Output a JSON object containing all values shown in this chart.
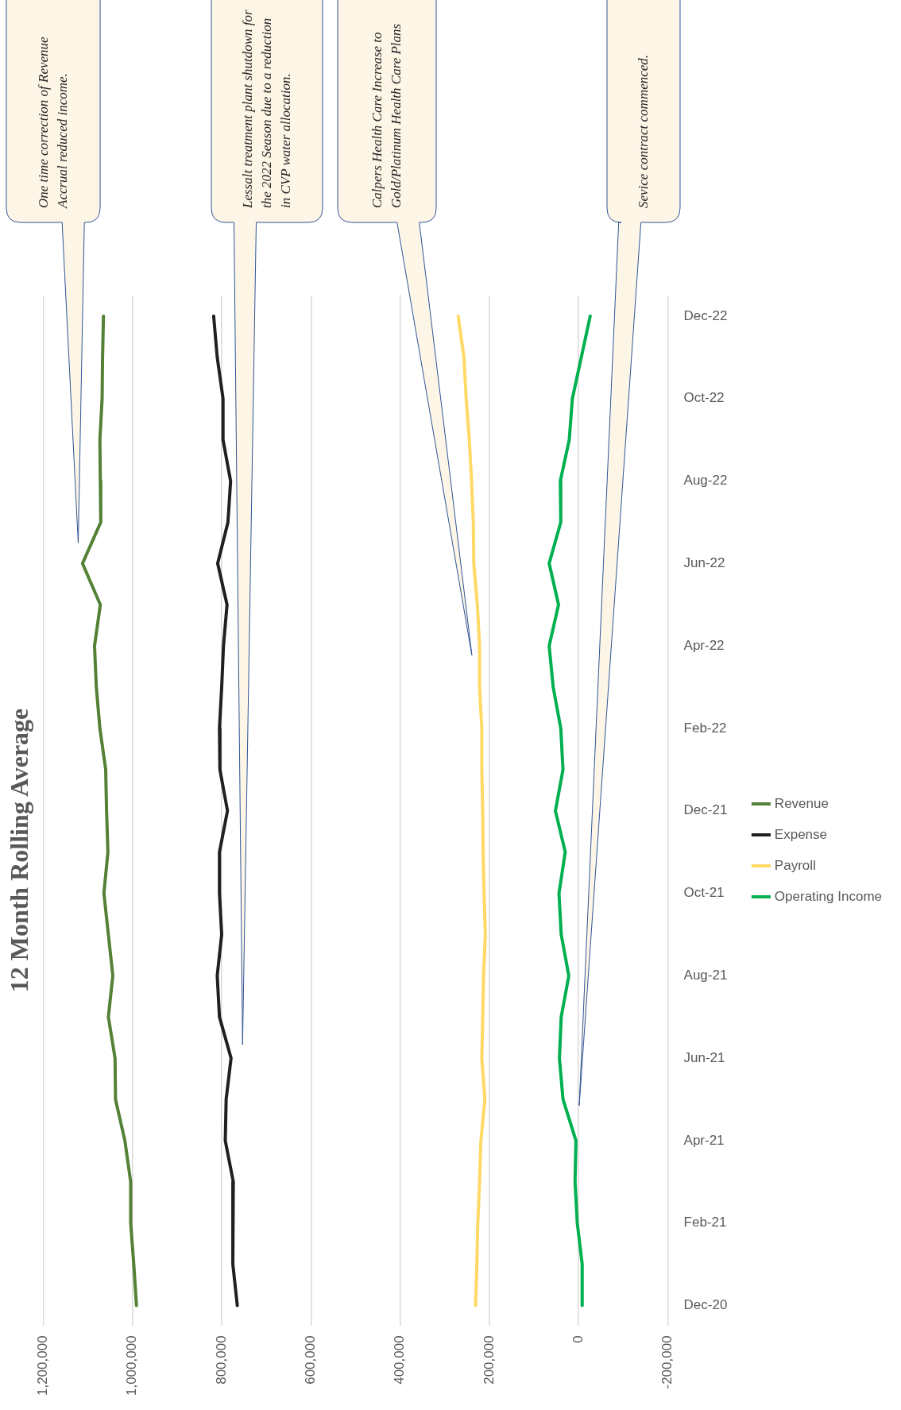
{
  "chart_data": {
    "type": "line",
    "title": "12 Month Rolling Average",
    "orientation": "horizontal",
    "categories": [
      "Dec-22",
      null,
      "Oct-22",
      null,
      "Aug-22",
      null,
      "Jun-22",
      null,
      "Apr-22",
      null,
      "Feb-22",
      null,
      "Dec-21",
      null,
      "Oct-21",
      null,
      "Aug-21",
      null,
      "Jun-21",
      null,
      "Apr-21",
      null,
      "Feb-21",
      null,
      "Dec-20"
    ],
    "series": [
      {
        "name": "Revenue",
        "color": "#538135",
        "values": [
          1065000,
          1067000,
          1068000,
          1073000,
          1072000,
          1071000,
          1112000,
          1072000,
          1085000,
          1081000,
          1073000,
          1060000,
          1058000,
          1055000,
          1064000,
          1054000,
          1044000,
          1054000,
          1039000,
          1038000,
          1017000,
          1004000,
          1004000,
          997000,
          991000
        ]
      },
      {
        "name": "Expense",
        "color": "#231f20",
        "values": [
          818000,
          810000,
          797000,
          797000,
          780000,
          786000,
          809000,
          788000,
          796000,
          800000,
          805000,
          804000,
          787000,
          805000,
          805000,
          800000,
          810000,
          805000,
          779000,
          790000,
          792000,
          774000,
          775000,
          775000,
          765000
        ]
      },
      {
        "name": "Payroll",
        "color": "#ffd966",
        "values": [
          270000,
          257000,
          252000,
          245000,
          240000,
          236000,
          235000,
          227000,
          222000,
          222000,
          217000,
          217000,
          215000,
          214000,
          212000,
          209000,
          213000,
          215000,
          217000,
          210000,
          219000,
          222000,
          226000,
          228000,
          231000
        ]
      },
      {
        "name": "Operating Income",
        "color": "#00b050",
        "values": [
          -26000,
          -6000,
          14000,
          21000,
          41000,
          40000,
          66000,
          45000,
          66000,
          57000,
          40000,
          35000,
          52000,
          30000,
          44000,
          39000,
          22000,
          39000,
          43000,
          35000,
          6000,
          8000,
          3000,
          -8000,
          -8000
        ]
      }
    ],
    "xlim": [
      1200000,
      -200000
    ],
    "xticks": [
      {
        "value": 1200000,
        "label": "1,200,000"
      },
      {
        "value": 1000000,
        "label": "1,000,000"
      },
      {
        "value": 800000,
        "label": "800,000"
      },
      {
        "value": 600000,
        "label": "600,000"
      },
      {
        "value": 400000,
        "label": "400,000"
      },
      {
        "value": 200000,
        "label": "200,000"
      },
      {
        "value": 0,
        "label": "0"
      },
      {
        "value": -200000,
        "label": "-200,000"
      }
    ],
    "grid": "x",
    "legend": "right",
    "annotations": [
      "One time correction of Revenue Accrual reduced income.",
      "Lessalt treatment plant shutdown for the 2022 Season due to a reduction in CVP water allocation.",
      "Calpers Health Care Increase to Gold/Platinum Health Care Plans",
      "Sevice contract commenced."
    ]
  }
}
